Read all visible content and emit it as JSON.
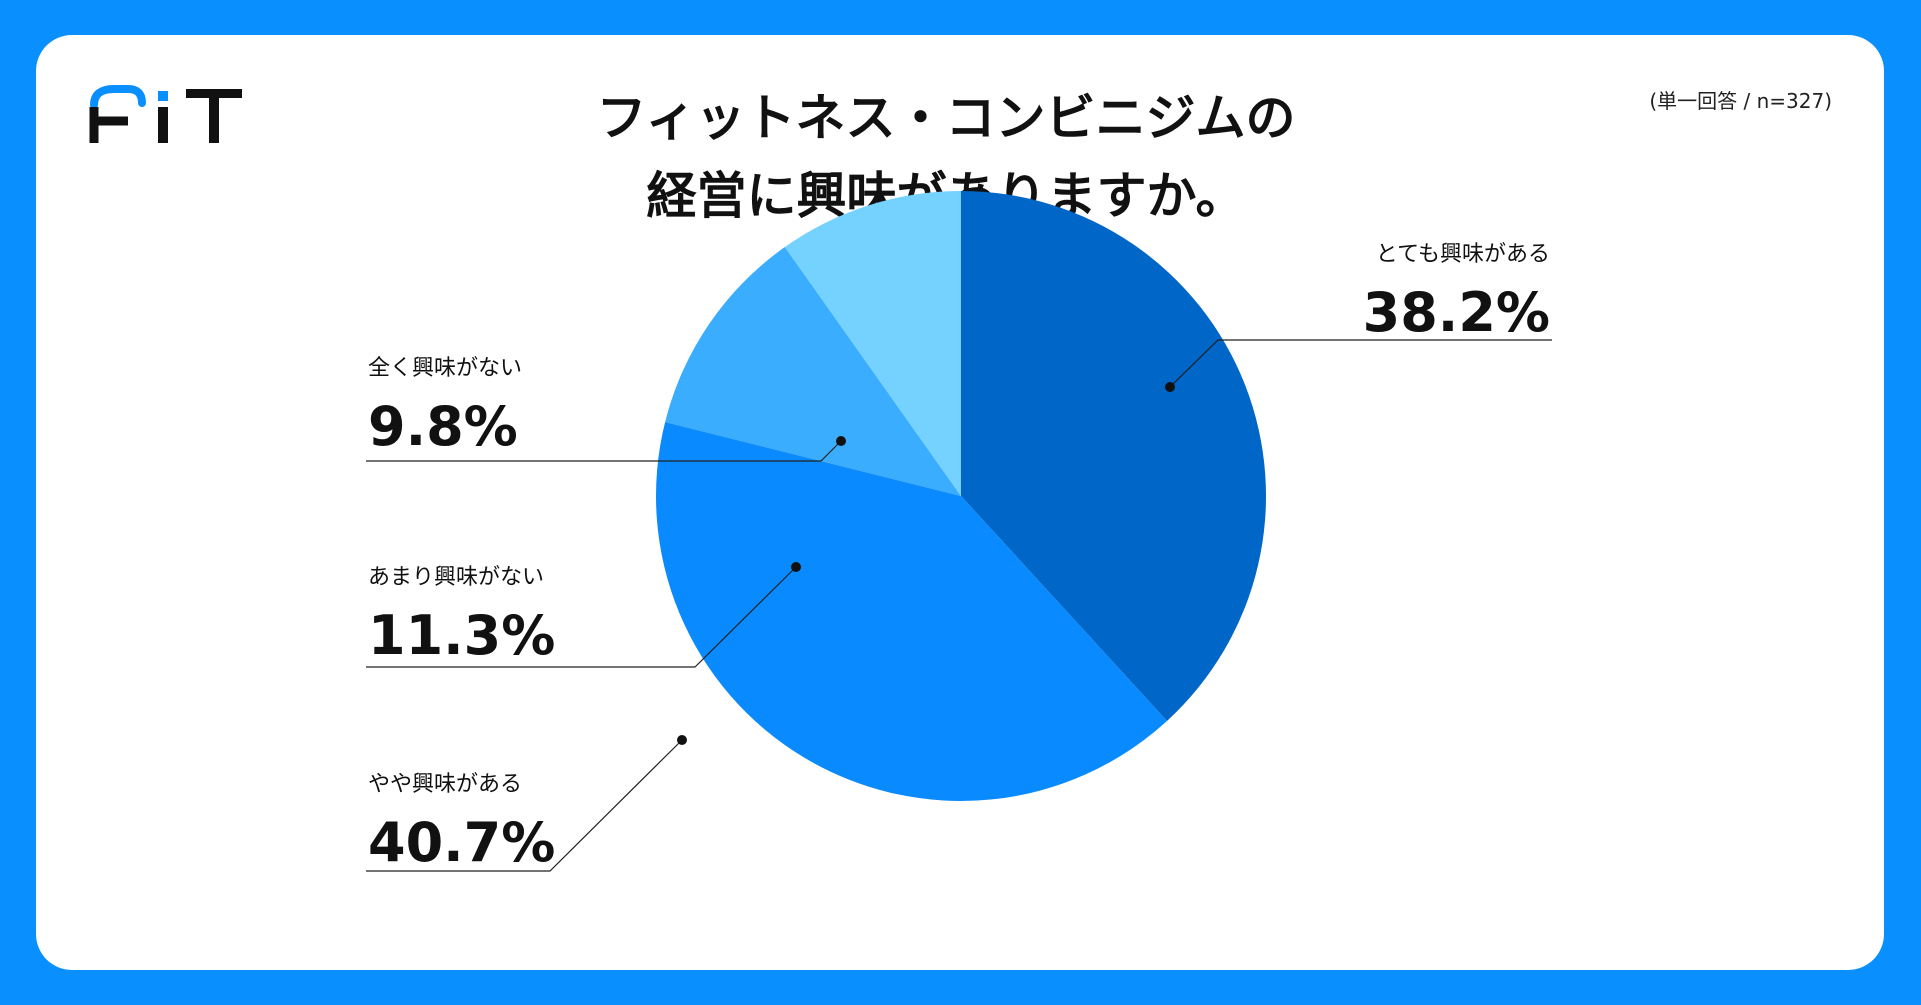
{
  "brand": {
    "name": "FIT",
    "accent_color": "#0a8fff"
  },
  "title_lines": [
    "フィットネス・コンビニジムの",
    "経営に興味がありますか。"
  ],
  "note": "(単一回答 / n=327)",
  "chart_data": {
    "type": "pie",
    "title": "フィットネス・コンビニジムの経営に興味がありますか。",
    "start_angle_deg": 0,
    "direction": "clockwise",
    "legend": "none",
    "slices": [
      {
        "label": "とても興味がある",
        "value": 38.2,
        "display": "38.2%",
        "color": "#0066c8"
      },
      {
        "label": "やや興味がある",
        "value": 40.7,
        "display": "40.7%",
        "color": "#0a8aff"
      },
      {
        "label": "あまり興味がない",
        "value": 11.3,
        "display": "11.3%",
        "color": "#3aadff"
      },
      {
        "label": "全く興味がない",
        "value": 9.8,
        "display": "9.8%",
        "color": "#75d2ff"
      }
    ]
  }
}
